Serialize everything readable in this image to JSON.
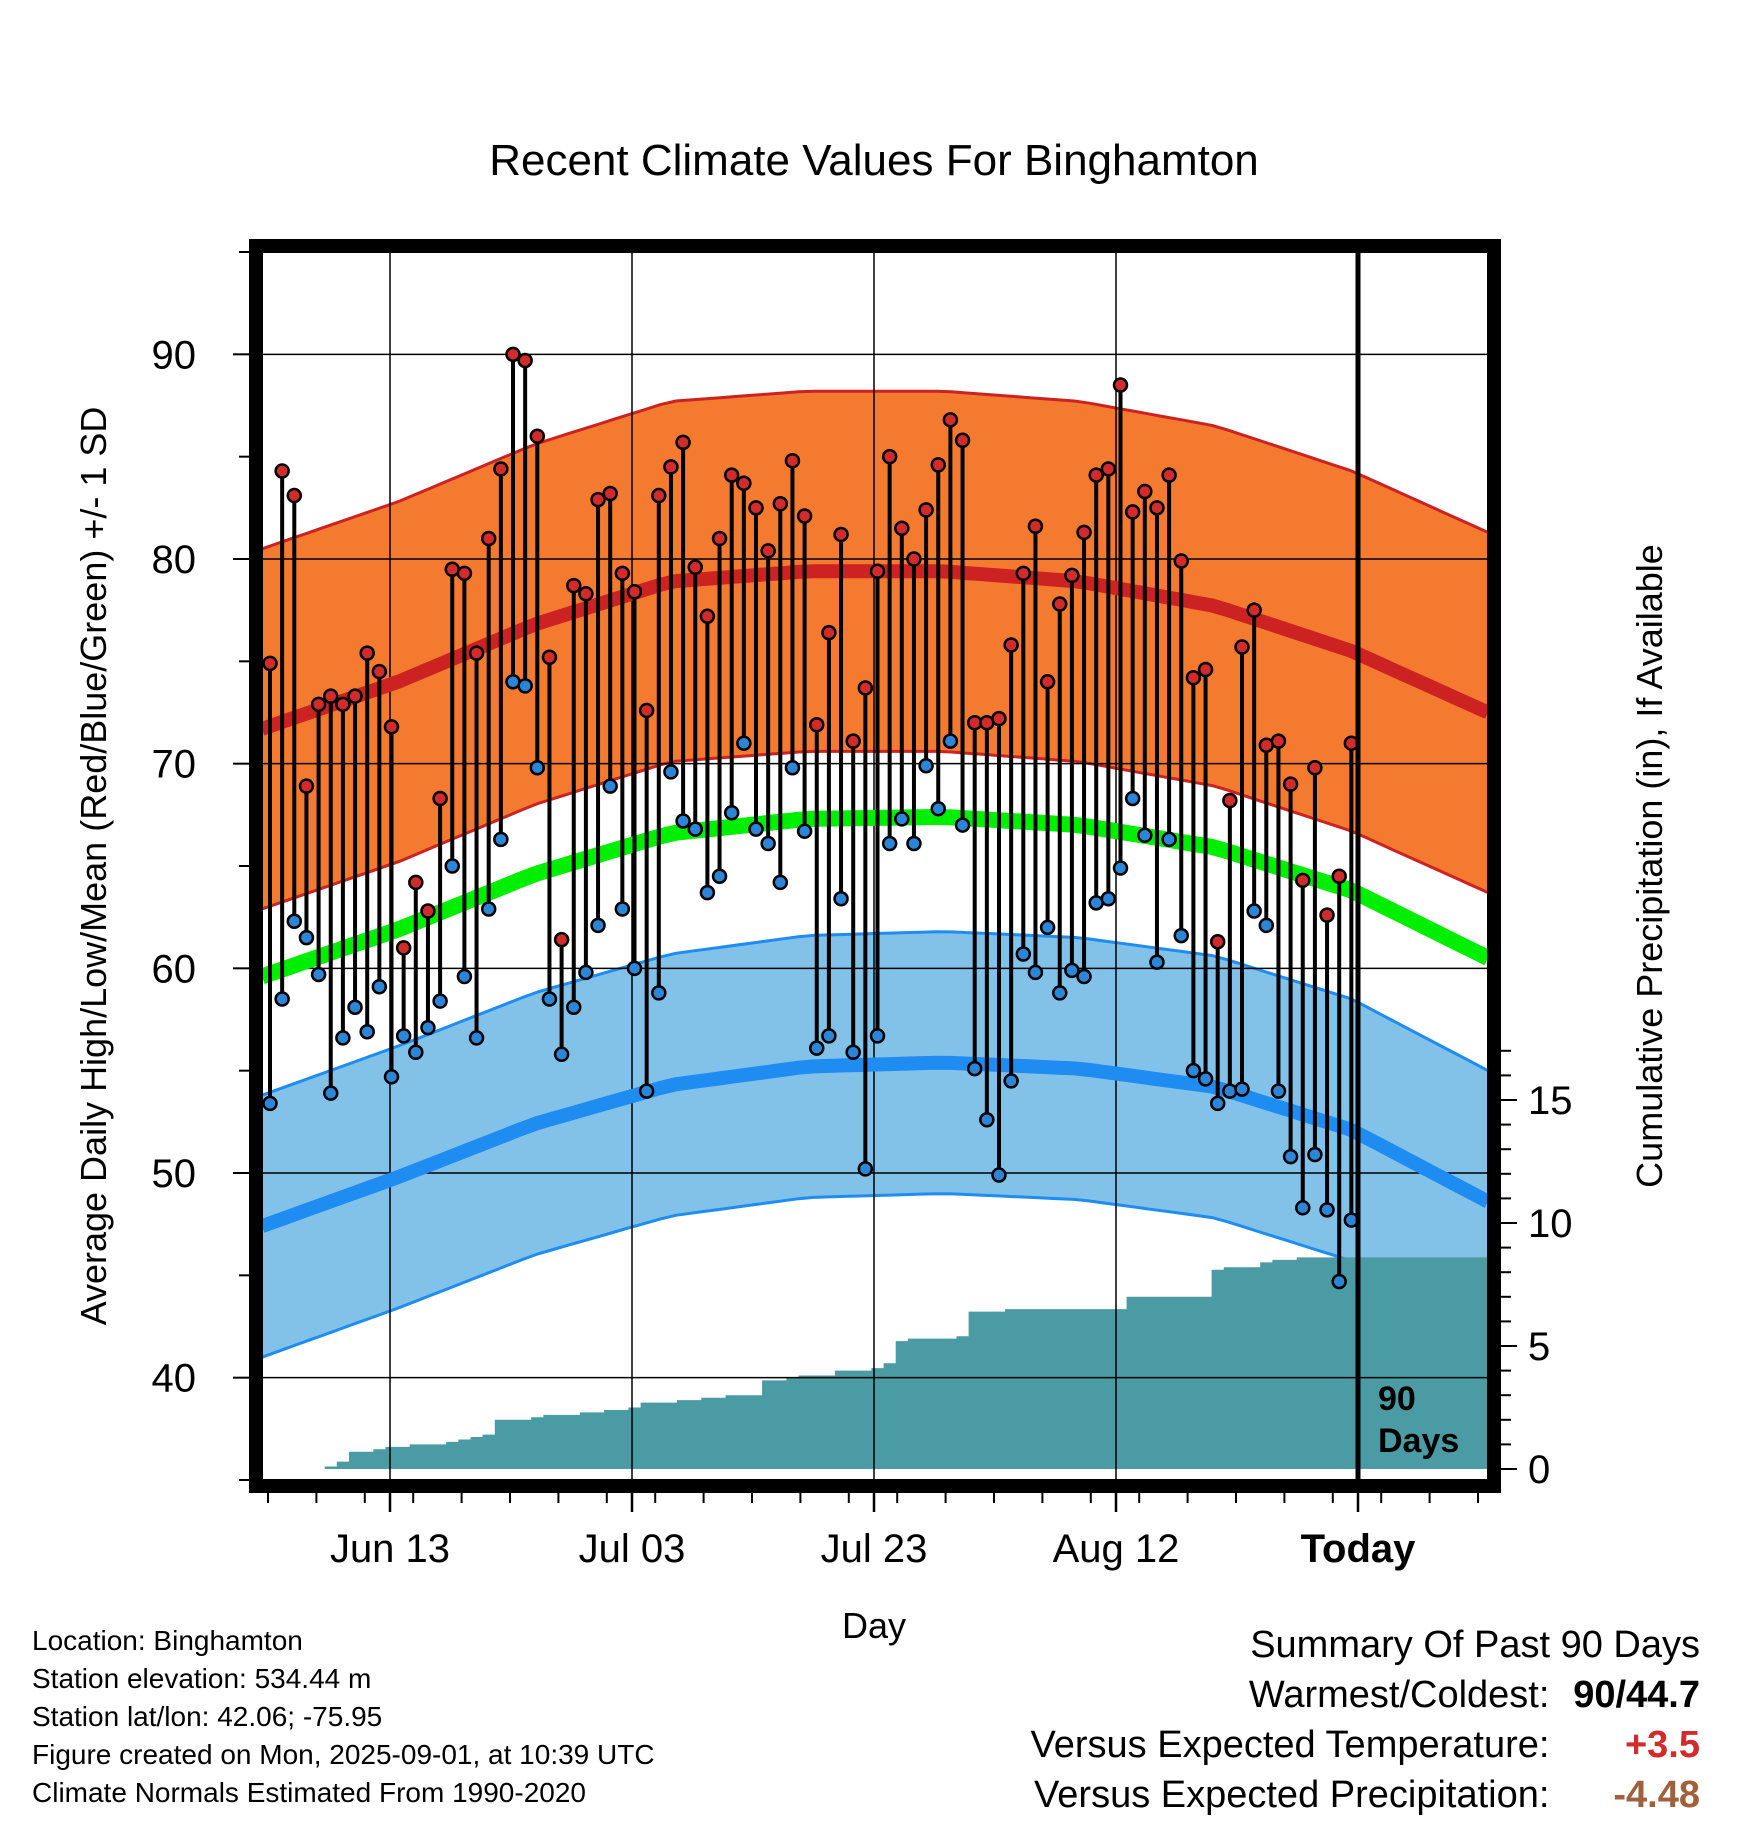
{
  "chart_data": {
    "type": "line",
    "title": "Recent Climate Values For Binghamton",
    "xlabel": "Day",
    "ylabel": "Average Daily High/Low/Mean (Red/Blue/Green) +/- 1 SD",
    "y2label": "Cumulative Precipitation (in), If Available",
    "ylim": [
      35,
      95
    ],
    "y2lim": [
      0,
      15
    ],
    "yticks": [
      40,
      50,
      60,
      70,
      80,
      90
    ],
    "y2ticks": [
      0,
      5,
      10,
      15
    ],
    "xticks": [
      "Jun 13",
      "Jul 03",
      "Jul 23",
      "Aug 12",
      "Today"
    ],
    "today_marker_label": "90 Days",
    "daily_high": [
      74.9,
      84.3,
      83.1,
      68.9,
      72.9,
      73.3,
      72.9,
      73.3,
      75.4,
      74.5,
      71.8,
      61.0,
      64.2,
      62.8,
      68.3,
      79.5,
      79.3,
      75.4,
      81.0,
      84.4,
      90.0,
      89.7,
      86.0,
      75.2,
      61.4,
      78.7,
      78.3,
      82.9,
      83.2,
      79.3,
      78.4,
      72.6,
      83.1,
      84.5,
      85.7,
      79.6,
      77.2,
      81.0,
      84.1,
      83.7,
      82.5,
      80.4,
      82.7,
      84.8,
      82.1,
      71.9,
      76.4,
      81.2,
      71.1,
      73.7,
      79.4,
      85.0,
      81.5,
      80.0,
      82.4,
      84.6,
      86.8,
      85.8,
      72.0,
      72.0,
      72.2,
      75.8,
      79.3,
      81.6,
      74.0,
      77.8,
      79.2,
      81.3,
      84.1,
      84.4,
      88.5,
      82.3,
      83.3,
      82.5,
      84.1,
      79.9,
      74.2,
      74.6,
      61.3,
      68.2,
      75.7,
      77.5,
      70.9,
      71.1,
      69.0,
      64.3,
      69.8,
      62.6,
      64.5,
      71.0
    ],
    "daily_low": [
      53.4,
      58.5,
      62.3,
      61.5,
      59.7,
      53.9,
      56.6,
      58.1,
      56.9,
      59.1,
      54.7,
      56.7,
      55.9,
      57.1,
      58.4,
      65.0,
      59.6,
      56.6,
      62.9,
      66.3,
      74.0,
      73.8,
      69.8,
      58.5,
      55.8,
      58.1,
      59.8,
      62.1,
      68.9,
      62.9,
      60.0,
      54.0,
      58.8,
      69.6,
      67.2,
      66.8,
      63.7,
      64.5,
      67.6,
      71.0,
      66.8,
      66.1,
      64.2,
      69.8,
      66.7,
      56.1,
      56.7,
      63.4,
      55.9,
      50.2,
      56.7,
      66.1,
      67.3,
      66.1,
      69.9,
      67.8,
      71.1,
      67.0,
      55.1,
      52.6,
      49.9,
      54.5,
      60.7,
      59.8,
      62.0,
      58.8,
      59.9,
      59.6,
      63.2,
      63.4,
      64.9,
      68.3,
      66.5,
      60.3,
      66.3,
      61.6,
      55.0,
      54.6,
      53.4,
      54.0,
      54.1,
      62.8,
      62.1,
      54.0,
      50.8,
      48.3,
      50.9,
      48.2,
      44.7,
      47.7
    ],
    "normal_high": [
      71.7,
      74.0,
      76.8,
      78.9,
      79.4,
      79.4,
      78.9,
      77.7,
      75.5,
      72.5
    ],
    "normal_low": [
      47.4,
      49.8,
      52.4,
      54.3,
      55.2,
      55.4,
      55.1,
      54.2,
      52.1,
      48.6
    ],
    "normal_mean": [
      59.6,
      61.9,
      64.6,
      66.6,
      67.3,
      67.4,
      67.0,
      65.9,
      63.8,
      60.5
    ],
    "normal_sd_high": 8.8,
    "normal_sd_low": 6.4,
    "cumulative_precip": [
      0,
      0,
      0,
      0,
      0,
      0.1,
      0.3,
      0.7,
      0.7,
      0.8,
      0.9,
      0.9,
      1.0,
      1.0,
      1.0,
      1.1,
      1.2,
      1.3,
      1.4,
      2.0,
      2.0,
      2.0,
      2.1,
      2.2,
      2.2,
      2.2,
      2.3,
      2.3,
      2.4,
      2.4,
      2.5,
      2.7,
      2.7,
      2.7,
      2.8,
      2.8,
      2.9,
      2.9,
      3.0,
      3.0,
      3.0,
      3.6,
      3.6,
      3.7,
      3.8,
      3.8,
      3.8,
      4.0,
      4.0,
      4.0,
      4.1,
      4.3,
      5.2,
      5.3,
      5.3,
      5.3,
      5.3,
      5.4,
      6.4,
      6.4,
      6.4,
      6.5,
      6.5,
      6.5,
      6.5,
      6.5,
      6.5,
      6.5,
      6.5,
      6.5,
      6.5,
      7.0,
      7.0,
      7.0,
      7.0,
      7.0,
      7.0,
      7.0,
      8.1,
      8.2,
      8.2,
      8.2,
      8.4,
      8.5,
      8.5,
      8.6,
      8.6,
      8.6,
      8.6,
      8.6
    ],
    "colors": {
      "high_band": "#f47a30",
      "high_line": "#cc2222",
      "low_band": "#82c1e8",
      "low_line": "#1e8cf0",
      "mean_line": "#00ee00",
      "precip": "#4a9ba3",
      "high_dot": "#d22b2b",
      "low_dot": "#2b86d8"
    }
  },
  "info": {
    "location": "Location: Binghamton",
    "elevation": "Station elevation: 534.44 m",
    "latlon": "Station lat/lon: 42.06; -75.95",
    "created": "Figure created on Mon, 2025-09-01, at 10:39 UTC",
    "normals": "Climate Normals Estimated From 1990-2020"
  },
  "summary": {
    "title": "Summary Of Past 90 Days",
    "warmest_label": "Warmest/Coldest:",
    "warmest_value_a": "90",
    "warmest_value_sep": "/",
    "warmest_value_b": "44.7",
    "temp_label": "Versus Expected Temperature:",
    "temp_value": "+3.5",
    "temp_color": "#d22b2b",
    "precip_label": "Versus Expected Precipitation:",
    "precip_value": "-4.48",
    "precip_color": "#a0603a"
  }
}
